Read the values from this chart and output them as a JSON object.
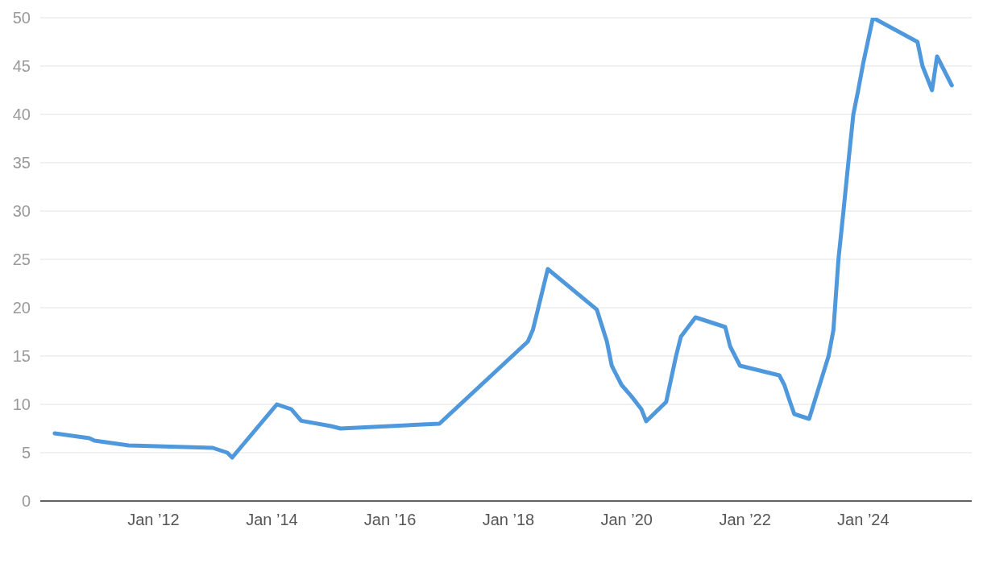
{
  "chart_data": {
    "type": "line",
    "x": [
      "2010-05",
      "2010-12",
      "2011-01",
      "2011-08",
      "2013-01",
      "2013-04",
      "2013-05",
      "2014-02",
      "2014-05",
      "2014-07",
      "2015-01",
      "2015-03",
      "2016-11",
      "2018-05",
      "2018-06",
      "2018-09",
      "2019-07",
      "2019-09",
      "2019-10",
      "2019-12",
      "2020-02",
      "2020-04",
      "2020-05",
      "2020-09",
      "2020-11",
      "2020-12",
      "2021-03",
      "2021-09",
      "2021-10",
      "2021-12",
      "2022-08",
      "2022-09",
      "2022-10",
      "2022-11",
      "2023-02",
      "2023-06",
      "2023-07",
      "2023-08",
      "2023-09",
      "2023-10",
      "2023-11",
      "2023-12",
      "2024-01",
      "2024-03",
      "2024-12",
      "2025-01",
      "2025-03",
      "2025-04",
      "2025-07"
    ],
    "series": [
      {
        "color": "#5098dc",
        "values": [
          7.0,
          6.5,
          6.25,
          5.75,
          5.5,
          5.0,
          4.5,
          10.0,
          9.5,
          8.3,
          7.75,
          7.5,
          8.0,
          16.5,
          17.7,
          24.0,
          19.8,
          16.5,
          14.0,
          12.0,
          10.8,
          9.5,
          8.25,
          10.25,
          15.0,
          17.0,
          19.0,
          18.0,
          16.0,
          14.0,
          13.0,
          12.0,
          10.5,
          9.0,
          8.5,
          15.0,
          17.7,
          25.0,
          30.0,
          35.0,
          40.0,
          42.5,
          45.3,
          50.0,
          47.5,
          45.0,
          42.5,
          46.0,
          43.0
        ]
      }
    ],
    "xlim": [
      "2010-02",
      "2025-11"
    ],
    "xticks": [
      {
        "value": "2012-01",
        "label": "Jan ’12"
      },
      {
        "value": "2014-01",
        "label": "Jan ’14"
      },
      {
        "value": "2016-01",
        "label": "Jan ’16"
      },
      {
        "value": "2018-01",
        "label": "Jan ’18"
      },
      {
        "value": "2020-01",
        "label": "Jan ’20"
      },
      {
        "value": "2022-01",
        "label": "Jan ’22"
      },
      {
        "value": "2024-01",
        "label": "Jan ’24"
      }
    ],
    "ylim": [
      0,
      50
    ],
    "yticks": [
      0,
      5,
      10,
      15,
      20,
      25,
      30,
      35,
      40,
      45,
      50
    ],
    "grid": "y",
    "line_style": "solid"
  }
}
